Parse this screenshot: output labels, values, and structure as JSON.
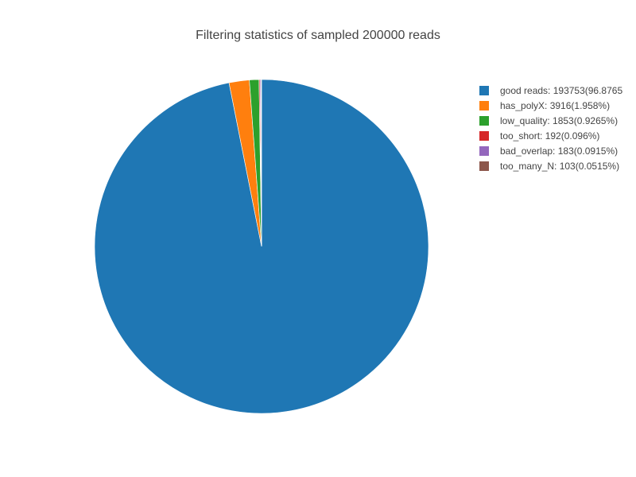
{
  "chart_data": {
    "type": "pie",
    "title": "Filtering statistics of sampled 200000 reads",
    "legend_position": "top-right",
    "slices": [
      {
        "name": "good reads",
        "value": 193753,
        "legend_label": "good reads: 193753(96.8765",
        "color": "#1f77b4"
      },
      {
        "name": "has_polyX",
        "value": 3916,
        "legend_label": "has_polyX: 3916(1.958%)",
        "color": "#ff7f0e"
      },
      {
        "name": "low_quality",
        "value": 1853,
        "legend_label": "low_quality: 1853(0.9265%)",
        "color": "#2ca02c"
      },
      {
        "name": "too_short",
        "value": 192,
        "legend_label": "too_short: 192(0.096%)",
        "color": "#d62728"
      },
      {
        "name": "bad_overlap",
        "value": 183,
        "legend_label": "bad_overlap: 183(0.0915%)",
        "color": "#9467bd"
      },
      {
        "name": "too_many_N",
        "value": 103,
        "legend_label": "too_many_N: 103(0.0515%)",
        "color": "#8c564b"
      }
    ]
  }
}
